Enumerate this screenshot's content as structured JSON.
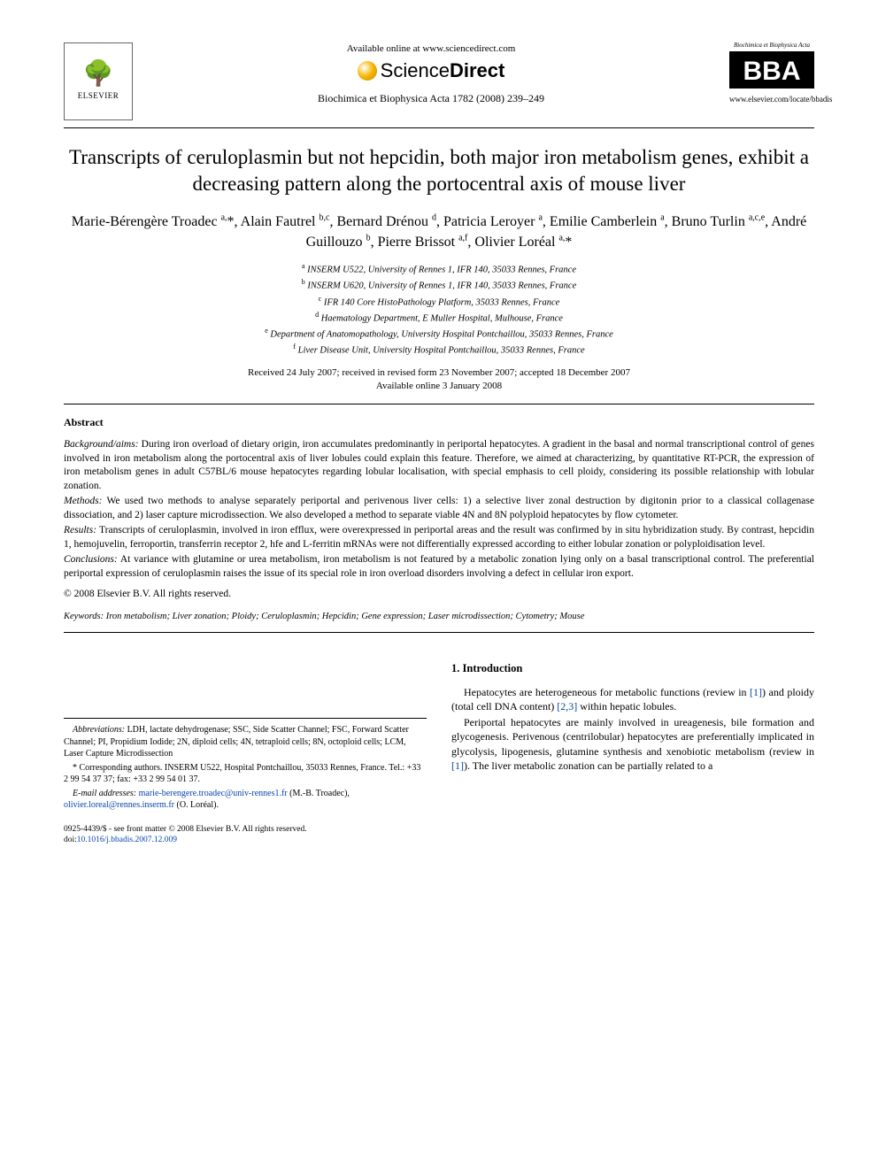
{
  "header": {
    "elsevier": "ELSEVIER",
    "available_online": "Available online at www.sciencedirect.com",
    "sd_sci": "Science",
    "sd_dir": "Direct",
    "journal_citation": "Biochimica et Biophysica Acta 1782 (2008) 239–249",
    "bba_top": "Biochimica et Biophysica Acta",
    "bba_abbrev": "BBA",
    "bba_url": "www.elsevier.com/locate/bbadis"
  },
  "title": "Transcripts of ceruloplasmin but not hepcidin, both major iron metabolism genes, exhibit a decreasing pattern along the portocentral axis of mouse liver",
  "authors_html": "Marie-Bérengère Troadec <sup>a,</sup>*, Alain Fautrel <sup>b,c</sup>, Bernard Drénou <sup>d</sup>, Patricia Leroyer <sup>a</sup>, Emilie Camberlein <sup>a</sup>, Bruno Turlin <sup>a,c,e</sup>, André Guillouzo <sup>b</sup>, Pierre Brissot <sup>a,f</sup>, Olivier Loréal <sup>a,</sup>*",
  "affiliations": [
    {
      "sup": "a",
      "text": "INSERM U522, University of Rennes 1, IFR 140, 35033 Rennes, France"
    },
    {
      "sup": "b",
      "text": "INSERM U620, University of Rennes 1, IFR 140, 35033 Rennes, France"
    },
    {
      "sup": "c",
      "text": "IFR 140 Core HistoPathology Platform, 35033 Rennes, France"
    },
    {
      "sup": "d",
      "text": "Haematology Department, E Muller Hospital, Mulhouse, France"
    },
    {
      "sup": "e",
      "text": "Department of Anatomopathology, University Hospital Pontchaillou, 35033 Rennes, France"
    },
    {
      "sup": "f",
      "text": "Liver Disease Unit, University Hospital Pontchaillou, 35033 Rennes, France"
    }
  ],
  "dates": {
    "line1": "Received 24 July 2007; received in revised form 23 November 2007; accepted 18 December 2007",
    "line2": "Available online 3 January 2008"
  },
  "abstract": {
    "heading": "Abstract",
    "sections": [
      {
        "label": "Background/aims:",
        "text": "During iron overload of dietary origin, iron accumulates predominantly in periportal hepatocytes. A gradient in the basal and normal transcriptional control of genes involved in iron metabolism along the portocentral axis of liver lobules could explain this feature. Therefore, we aimed at characterizing, by quantitative RT-PCR, the expression of iron metabolism genes in adult C57BL/6 mouse hepatocytes regarding lobular localisation, with special emphasis to cell ploidy, considering its possible relationship with lobular zonation."
      },
      {
        "label": "Methods:",
        "text": "We used two methods to analyse separately periportal and perivenous liver cells: 1) a selective liver zonal destruction by digitonin prior to a classical collagenase dissociation, and 2) laser capture microdissection. We also developed a method to separate viable 4N and 8N polyploid hepatocytes by flow cytometer."
      },
      {
        "label": "Results:",
        "text": "Transcripts of ceruloplasmin, involved in iron efflux, were overexpressed in periportal areas and the result was confirmed by in situ hybridization study. By contrast, hepcidin 1, hemojuvelin, ferroportin, transferrin receptor 2, hfe and L-ferritin mRNAs were not differentially expressed according to either lobular zonation or polyploidisation level."
      },
      {
        "label": "Conclusions:",
        "text": "At variance with glutamine or urea metabolism, iron metabolism is not featured by a metabolic zonation lying only on a basal transcriptional control. The preferential periportal expression of ceruloplasmin raises the issue of its special role in iron overload disorders involving a defect in cellular iron export."
      }
    ],
    "copyright": "© 2008 Elsevier B.V. All rights reserved."
  },
  "keywords": {
    "label": "Keywords:",
    "text": "Iron metabolism; Liver zonation; Ploidy; Ceruloplasmin; Hepcidin; Gene expression; Laser microdissection; Cytometry; Mouse"
  },
  "footnotes": {
    "abbrev_label": "Abbreviations:",
    "abbrev_text": "LDH, lactate dehydrogenase; SSC, Side Scatter Channel; FSC, Forward Scatter Channel; PI, Propidium Iodide; 2N, diploid cells; 4N, tetraploid cells; 8N, octoploid cells; LCM, Laser Capture Microdissection",
    "corr_label": "* Corresponding authors.",
    "corr_text": "INSERM U522, Hospital Pontchaillou, 35033 Rennes, France. Tel.: +33 2 99 54 37 37; fax: +33 2 99 54 01 37.",
    "email_label": "E-mail addresses:",
    "email1": "marie-berengere.troadec@univ-rennes1.fr",
    "email1_owner": "(M.-B. Troadec),",
    "email2": "olivier.loreal@rennes.inserm.fr",
    "email2_owner": "(O. Loréal)."
  },
  "intro": {
    "heading": "1. Introduction",
    "p1_pre": "Hepatocytes are heterogeneous for metabolic functions (review in ",
    "p1_ref1": "[1]",
    "p1_mid": ") and ploidy (total cell DNA content) ",
    "p1_ref2": "[2,3]",
    "p1_post": " within hepatic lobules.",
    "p2_pre": "Periportal hepatocytes are mainly involved in ureagenesis, bile formation and glycogenesis. Perivenous (centrilobular) hepatocytes are preferentially implicated in glycolysis, lipogenesis, glutamine synthesis and xenobiotic metabolism (review in ",
    "p2_ref1": "[1]",
    "p2_post": "). The liver metabolic zonation can be partially related to a"
  },
  "footer": {
    "issn_line": "0925-4439/$ - see front matter © 2008 Elsevier B.V. All rights reserved.",
    "doi_label": "doi:",
    "doi": "10.1016/j.bbadis.2007.12.009"
  },
  "colors": {
    "text": "#000000",
    "background": "#ffffff",
    "link": "#0645ad",
    "sd_orange": "#f7b500"
  }
}
